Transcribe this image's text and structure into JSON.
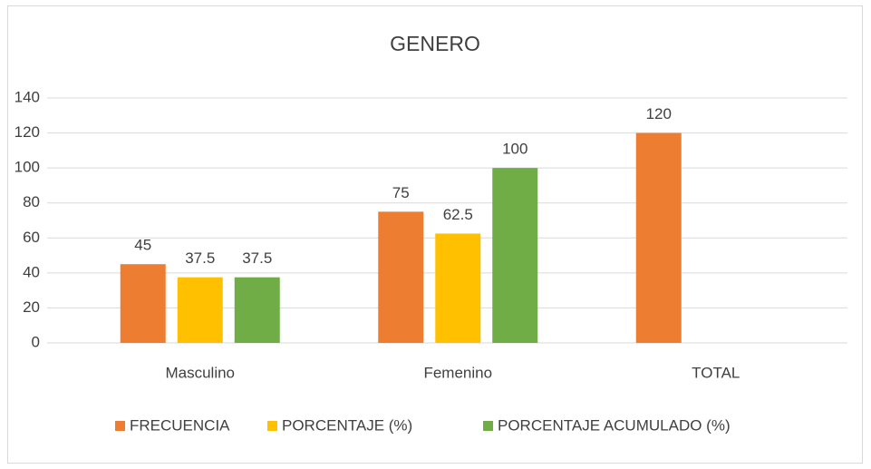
{
  "chart_data": {
    "type": "bar",
    "title": "GENERO",
    "categories": [
      "Masculino",
      "Femenino",
      "TOTAL"
    ],
    "series": [
      {
        "name": "FRECUENCIA",
        "color": "#ed7d31",
        "values": [
          45,
          75,
          120
        ]
      },
      {
        "name": "PORCENTAJE (%)",
        "color": "#ffc000",
        "values": [
          37.5,
          62.5,
          null
        ]
      },
      {
        "name": "PORCENTAJE ACUMULADO (%)",
        "color": "#70ad47",
        "values": [
          37.5,
          100,
          null
        ]
      }
    ],
    "ylim": [
      0,
      140
    ],
    "yticks": [
      0,
      20,
      40,
      60,
      80,
      100,
      120,
      140
    ],
    "grid": true,
    "legend": "bottom"
  }
}
